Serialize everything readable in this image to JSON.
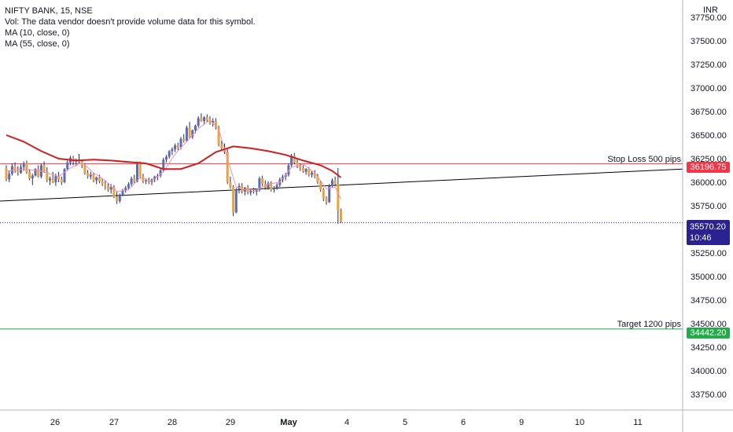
{
  "legend": {
    "title": "NIFTY BANK, 15, NSE",
    "vol_note": "Vol: The data vendor doesn't provide volume data for this symbol.",
    "ma1": "MA (10, close, 0)",
    "ma2": "MA (55, close, 0)"
  },
  "axis": {
    "currency": "INR"
  },
  "colors": {
    "up": "#26a69a",
    "down": "#ef5350",
    "candle_body": "#1f2a6b",
    "ma55": "#cc1f1f",
    "ma10": "#f48fb1",
    "stop_loss": "#f23645",
    "target": "#22ab48",
    "last_price_bg": "#2a2290",
    "grid": "#e0e3eb",
    "trend": "#000000"
  },
  "annotations": {
    "stop_loss_label": "Stop Loss 500 pips",
    "stop_loss_price": "36196.75",
    "target_label": "Target 1200 pips",
    "target_price": "34442.20",
    "last_price": "35570.20",
    "countdown": "10:46"
  },
  "chart_data": {
    "type": "candlestick",
    "title": "NIFTY BANK, 15, NSE",
    "y_ticks": [
      33750,
      34000,
      34250,
      34500,
      34750,
      35000,
      35250,
      35500,
      35750,
      36000,
      36250,
      36500,
      36750,
      37000,
      37250,
      37500,
      37750
    ],
    "y_tick_labels": [
      "33750.00",
      "34000.00",
      "34250.00",
      "34500.00",
      "34750.00",
      "35000.00",
      "35250.00",
      "35500.00",
      "35750.00",
      "36000.00",
      "36250.00",
      "36500.00",
      "36750.00",
      "37000.00",
      "37250.00",
      "37500.00",
      "37750.00"
    ],
    "ylim": [
      33600,
      37900
    ],
    "x_labels": [
      "26",
      "27",
      "28",
      "29",
      "May",
      "4",
      "5",
      "6",
      "9",
      "10",
      "11"
    ],
    "levels": {
      "stop_loss": 36196.75,
      "target": 34442.2,
      "last": 35570.2
    },
    "trendline": {
      "start": [
        0,
        35800
      ],
      "end": [
        11.7,
        36140
      ]
    },
    "candles": [
      {
        "d": 0.0,
        "o": 36150,
        "h": 36180,
        "l": 36010,
        "c": 36030
      },
      {
        "d": 0.05,
        "o": 36030,
        "h": 36120,
        "l": 36000,
        "c": 36090
      },
      {
        "d": 0.1,
        "o": 36090,
        "h": 36200,
        "l": 36070,
        "c": 36170
      },
      {
        "d": 0.15,
        "o": 36170,
        "h": 36210,
        "l": 36100,
        "c": 36120
      },
      {
        "d": 0.2,
        "o": 36120,
        "h": 36170,
        "l": 36070,
        "c": 36100
      },
      {
        "d": 0.25,
        "o": 36100,
        "h": 36190,
        "l": 36090,
        "c": 36160
      },
      {
        "d": 0.3,
        "o": 36160,
        "h": 36220,
        "l": 36120,
        "c": 36200
      },
      {
        "d": 0.35,
        "o": 36200,
        "h": 36230,
        "l": 36090,
        "c": 36110
      },
      {
        "d": 0.4,
        "o": 36110,
        "h": 36140,
        "l": 36020,
        "c": 36040
      },
      {
        "d": 0.45,
        "o": 36040,
        "h": 36090,
        "l": 35970,
        "c": 36070
      },
      {
        "d": 0.5,
        "o": 36070,
        "h": 36150,
        "l": 36060,
        "c": 36140
      },
      {
        "d": 0.55,
        "o": 36140,
        "h": 36180,
        "l": 36050,
        "c": 36060
      },
      {
        "d": 0.6,
        "o": 36060,
        "h": 36200,
        "l": 36040,
        "c": 36180
      },
      {
        "d": 0.65,
        "o": 36180,
        "h": 36220,
        "l": 36100,
        "c": 36110
      },
      {
        "d": 0.7,
        "o": 36110,
        "h": 36160,
        "l": 36000,
        "c": 36020
      },
      {
        "d": 0.75,
        "o": 36020,
        "h": 36060,
        "l": 35970,
        "c": 36040
      },
      {
        "d": 0.8,
        "o": 36040,
        "h": 36110,
        "l": 35990,
        "c": 36000
      },
      {
        "d": 0.85,
        "o": 36000,
        "h": 36090,
        "l": 35960,
        "c": 36070
      },
      {
        "d": 0.9,
        "o": 36070,
        "h": 36110,
        "l": 36000,
        "c": 36030
      },
      {
        "d": 0.95,
        "o": 36030,
        "h": 36060,
        "l": 35970,
        "c": 36000
      },
      {
        "d": 1.0,
        "o": 36000,
        "h": 36150,
        "l": 35990,
        "c": 36140
      },
      {
        "d": 1.05,
        "o": 36140,
        "h": 36230,
        "l": 36120,
        "c": 36210
      },
      {
        "d": 1.1,
        "o": 36210,
        "h": 36280,
        "l": 36180,
        "c": 36260
      },
      {
        "d": 1.15,
        "o": 36260,
        "h": 36280,
        "l": 36180,
        "c": 36220
      },
      {
        "d": 1.2,
        "o": 36220,
        "h": 36250,
        "l": 36170,
        "c": 36240
      },
      {
        "d": 1.25,
        "o": 36240,
        "h": 36300,
        "l": 36200,
        "c": 36220
      },
      {
        "d": 1.3,
        "o": 36220,
        "h": 36240,
        "l": 36150,
        "c": 36180
      },
      {
        "d": 1.35,
        "o": 36180,
        "h": 36200,
        "l": 36080,
        "c": 36100
      },
      {
        "d": 1.4,
        "o": 36100,
        "h": 36130,
        "l": 36040,
        "c": 36060
      },
      {
        "d": 1.45,
        "o": 36060,
        "h": 36110,
        "l": 36030,
        "c": 36080
      },
      {
        "d": 1.5,
        "o": 36080,
        "h": 36100,
        "l": 36000,
        "c": 36020
      },
      {
        "d": 1.55,
        "o": 36020,
        "h": 36060,
        "l": 35980,
        "c": 36050
      },
      {
        "d": 1.6,
        "o": 36050,
        "h": 36080,
        "l": 35990,
        "c": 36010
      },
      {
        "d": 1.65,
        "o": 36010,
        "h": 36040,
        "l": 35960,
        "c": 35980
      },
      {
        "d": 1.7,
        "o": 35980,
        "h": 36020,
        "l": 35920,
        "c": 35960
      },
      {
        "d": 1.75,
        "o": 35960,
        "h": 35990,
        "l": 35900,
        "c": 35920
      },
      {
        "d": 1.8,
        "o": 35920,
        "h": 35980,
        "l": 35880,
        "c": 35950
      },
      {
        "d": 1.85,
        "o": 35950,
        "h": 35970,
        "l": 35830,
        "c": 35850
      },
      {
        "d": 1.9,
        "o": 35850,
        "h": 35900,
        "l": 35770,
        "c": 35800
      },
      {
        "d": 1.95,
        "o": 35800,
        "h": 35880,
        "l": 35780,
        "c": 35860
      },
      {
        "d": 2.0,
        "o": 35860,
        "h": 35930,
        "l": 35850,
        "c": 35910
      },
      {
        "d": 2.05,
        "o": 35910,
        "h": 35960,
        "l": 35890,
        "c": 35940
      },
      {
        "d": 2.1,
        "o": 35940,
        "h": 36000,
        "l": 35920,
        "c": 35980
      },
      {
        "d": 2.15,
        "o": 35980,
        "h": 36060,
        "l": 35960,
        "c": 36040
      },
      {
        "d": 2.2,
        "o": 36040,
        "h": 36080,
        "l": 35990,
        "c": 36010
      },
      {
        "d": 2.25,
        "o": 36010,
        "h": 36220,
        "l": 36000,
        "c": 36200
      },
      {
        "d": 2.3,
        "o": 36200,
        "h": 36220,
        "l": 36040,
        "c": 36060
      },
      {
        "d": 2.35,
        "o": 36060,
        "h": 36090,
        "l": 35990,
        "c": 36010
      },
      {
        "d": 2.4,
        "o": 36010,
        "h": 36040,
        "l": 35980,
        "c": 36020
      },
      {
        "d": 2.45,
        "o": 36020,
        "h": 36050,
        "l": 35980,
        "c": 36000
      },
      {
        "d": 2.5,
        "o": 36000,
        "h": 36040,
        "l": 35970,
        "c": 36030
      },
      {
        "d": 2.55,
        "o": 36030,
        "h": 36070,
        "l": 36000,
        "c": 36060
      },
      {
        "d": 2.6,
        "o": 36060,
        "h": 36090,
        "l": 36020,
        "c": 36070
      },
      {
        "d": 2.65,
        "o": 36070,
        "h": 36140,
        "l": 36050,
        "c": 36130
      },
      {
        "d": 2.7,
        "o": 36130,
        "h": 36260,
        "l": 36110,
        "c": 36240
      },
      {
        "d": 2.75,
        "o": 36240,
        "h": 36290,
        "l": 36210,
        "c": 36270
      },
      {
        "d": 2.8,
        "o": 36270,
        "h": 36340,
        "l": 36250,
        "c": 36330
      },
      {
        "d": 2.85,
        "o": 36330,
        "h": 36370,
        "l": 36290,
        "c": 36350
      },
      {
        "d": 2.9,
        "o": 36350,
        "h": 36410,
        "l": 36320,
        "c": 36390
      },
      {
        "d": 2.95,
        "o": 36390,
        "h": 36420,
        "l": 36340,
        "c": 36370
      },
      {
        "d": 3.0,
        "o": 36370,
        "h": 36480,
        "l": 36350,
        "c": 36460
      },
      {
        "d": 3.05,
        "o": 36460,
        "h": 36510,
        "l": 36420,
        "c": 36440
      },
      {
        "d": 3.1,
        "o": 36440,
        "h": 36600,
        "l": 36430,
        "c": 36580
      },
      {
        "d": 3.15,
        "o": 36580,
        "h": 36640,
        "l": 36460,
        "c": 36480
      },
      {
        "d": 3.2,
        "o": 36480,
        "h": 36560,
        "l": 36460,
        "c": 36550
      },
      {
        "d": 3.25,
        "o": 36550,
        "h": 36610,
        "l": 36520,
        "c": 36600
      },
      {
        "d": 3.3,
        "o": 36600,
        "h": 36700,
        "l": 36580,
        "c": 36680
      },
      {
        "d": 3.35,
        "o": 36680,
        "h": 36730,
        "l": 36640,
        "c": 36650
      },
      {
        "d": 3.4,
        "o": 36650,
        "h": 36700,
        "l": 36620,
        "c": 36690
      },
      {
        "d": 3.45,
        "o": 36690,
        "h": 36720,
        "l": 36640,
        "c": 36660
      },
      {
        "d": 3.5,
        "o": 36660,
        "h": 36700,
        "l": 36610,
        "c": 36630
      },
      {
        "d": 3.55,
        "o": 36630,
        "h": 36680,
        "l": 36590,
        "c": 36650
      },
      {
        "d": 3.6,
        "o": 36650,
        "h": 36680,
        "l": 36560,
        "c": 36580
      },
      {
        "d": 3.65,
        "o": 36580,
        "h": 36600,
        "l": 36380,
        "c": 36400
      },
      {
        "d": 3.7,
        "o": 36400,
        "h": 36440,
        "l": 36330,
        "c": 36360
      },
      {
        "d": 3.75,
        "o": 36360,
        "h": 36410,
        "l": 36300,
        "c": 36320
      },
      {
        "d": 3.8,
        "o": 36320,
        "h": 36350,
        "l": 35980,
        "c": 36000
      },
      {
        "d": 3.85,
        "o": 36000,
        "h": 36060,
        "l": 35930,
        "c": 35950
      },
      {
        "d": 3.9,
        "o": 35950,
        "h": 35970,
        "l": 35640,
        "c": 35680
      },
      {
        "d": 3.95,
        "o": 35680,
        "h": 35940,
        "l": 35670,
        "c": 35920
      },
      {
        "d": 4.0,
        "o": 35920,
        "h": 35990,
        "l": 35880,
        "c": 35960
      },
      {
        "d": 4.05,
        "o": 35960,
        "h": 35990,
        "l": 35880,
        "c": 35900
      },
      {
        "d": 4.1,
        "o": 35900,
        "h": 35950,
        "l": 35860,
        "c": 35940
      },
      {
        "d": 4.15,
        "o": 35940,
        "h": 35970,
        "l": 35870,
        "c": 35890
      },
      {
        "d": 4.2,
        "o": 35890,
        "h": 35920,
        "l": 35860,
        "c": 35910
      },
      {
        "d": 4.25,
        "o": 35910,
        "h": 35940,
        "l": 35880,
        "c": 35900
      },
      {
        "d": 4.3,
        "o": 35900,
        "h": 35930,
        "l": 35860,
        "c": 35920
      },
      {
        "d": 4.35,
        "o": 35920,
        "h": 36060,
        "l": 35900,
        "c": 36040
      },
      {
        "d": 4.4,
        "o": 36040,
        "h": 36070,
        "l": 35960,
        "c": 35980
      },
      {
        "d": 4.45,
        "o": 35980,
        "h": 36020,
        "l": 35920,
        "c": 35940
      },
      {
        "d": 4.5,
        "o": 35940,
        "h": 36010,
        "l": 35920,
        "c": 35990
      },
      {
        "d": 4.55,
        "o": 35990,
        "h": 36010,
        "l": 35900,
        "c": 35920
      },
      {
        "d": 4.6,
        "o": 35920,
        "h": 35960,
        "l": 35890,
        "c": 35940
      },
      {
        "d": 4.65,
        "o": 35940,
        "h": 35990,
        "l": 35920,
        "c": 35970
      },
      {
        "d": 4.7,
        "o": 35970,
        "h": 36050,
        "l": 35950,
        "c": 36030
      },
      {
        "d": 4.75,
        "o": 36030,
        "h": 36080,
        "l": 36000,
        "c": 36060
      },
      {
        "d": 4.8,
        "o": 36060,
        "h": 36100,
        "l": 36020,
        "c": 36080
      },
      {
        "d": 4.85,
        "o": 36080,
        "h": 36200,
        "l": 36060,
        "c": 36180
      },
      {
        "d": 4.9,
        "o": 36180,
        "h": 36300,
        "l": 36160,
        "c": 36280
      },
      {
        "d": 4.95,
        "o": 36280,
        "h": 36310,
        "l": 36190,
        "c": 36210
      },
      {
        "d": 5.0,
        "o": 36210,
        "h": 36250,
        "l": 36150,
        "c": 36170
      },
      {
        "d": 5.05,
        "o": 36170,
        "h": 36200,
        "l": 36120,
        "c": 36150
      },
      {
        "d": 5.1,
        "o": 36150,
        "h": 36180,
        "l": 36100,
        "c": 36110
      },
      {
        "d": 5.15,
        "o": 36110,
        "h": 36150,
        "l": 36080,
        "c": 36140
      },
      {
        "d": 5.2,
        "o": 36140,
        "h": 36160,
        "l": 36060,
        "c": 36080
      },
      {
        "d": 5.25,
        "o": 36080,
        "h": 36120,
        "l": 36050,
        "c": 36100
      },
      {
        "d": 5.3,
        "o": 36100,
        "h": 36130,
        "l": 36040,
        "c": 36060
      },
      {
        "d": 5.35,
        "o": 36060,
        "h": 36090,
        "l": 35980,
        "c": 36000
      },
      {
        "d": 5.4,
        "o": 36000,
        "h": 36020,
        "l": 35900,
        "c": 35920
      },
      {
        "d": 5.45,
        "o": 35920,
        "h": 35940,
        "l": 35800,
        "c": 35830
      },
      {
        "d": 5.5,
        "o": 35830,
        "h": 35850,
        "l": 35760,
        "c": 35790
      },
      {
        "d": 5.55,
        "o": 35790,
        "h": 35980,
        "l": 35780,
        "c": 35960
      },
      {
        "d": 5.6,
        "o": 35960,
        "h": 36040,
        "l": 35940,
        "c": 36020
      },
      {
        "d": 5.65,
        "o": 36020,
        "h": 36060,
        "l": 35960,
        "c": 35980
      },
      {
        "d": 5.7,
        "o": 35980,
        "h": 36150,
        "l": 35560,
        "c": 35700
      },
      {
        "d": 5.75,
        "o": 35700,
        "h": 35720,
        "l": 35570,
        "c": 35580
      }
    ],
    "ma10": [
      [
        0,
        36120
      ],
      [
        0.3,
        36140
      ],
      [
        0.6,
        36120
      ],
      [
        0.9,
        36060
      ],
      [
        1.1,
        36150
      ],
      [
        1.3,
        36210
      ],
      [
        1.5,
        36100
      ],
      [
        1.7,
        36020
      ],
      [
        1.9,
        35900
      ],
      [
        2.1,
        35920
      ],
      [
        2.3,
        36050
      ],
      [
        2.5,
        36010
      ],
      [
        2.7,
        36110
      ],
      [
        2.9,
        36300
      ],
      [
        3.1,
        36430
      ],
      [
        3.3,
        36570
      ],
      [
        3.5,
        36660
      ],
      [
        3.65,
        36560
      ],
      [
        3.8,
        36250
      ],
      [
        3.95,
        35950
      ],
      [
        4.1,
        35920
      ],
      [
        4.3,
        35920
      ],
      [
        4.5,
        35980
      ],
      [
        4.7,
        36000
      ],
      [
        4.9,
        36160
      ],
      [
        5.1,
        36190
      ],
      [
        5.3,
        36100
      ],
      [
        5.5,
        35930
      ],
      [
        5.65,
        35950
      ],
      [
        5.75,
        35820
      ]
    ],
    "ma55": [
      [
        0,
        36500
      ],
      [
        0.3,
        36430
      ],
      [
        0.6,
        36330
      ],
      [
        0.9,
        36250
      ],
      [
        1.2,
        36230
      ],
      [
        1.5,
        36240
      ],
      [
        1.8,
        36230
      ],
      [
        2.1,
        36215
      ],
      [
        2.4,
        36200
      ],
      [
        2.7,
        36140
      ],
      [
        3.0,
        36140
      ],
      [
        3.3,
        36200
      ],
      [
        3.6,
        36320
      ],
      [
        3.9,
        36380
      ],
      [
        4.2,
        36360
      ],
      [
        4.5,
        36330
      ],
      [
        4.8,
        36290
      ],
      [
        5.1,
        36230
      ],
      [
        5.4,
        36180
      ],
      [
        5.6,
        36120
      ],
      [
        5.75,
        36050
      ]
    ]
  }
}
